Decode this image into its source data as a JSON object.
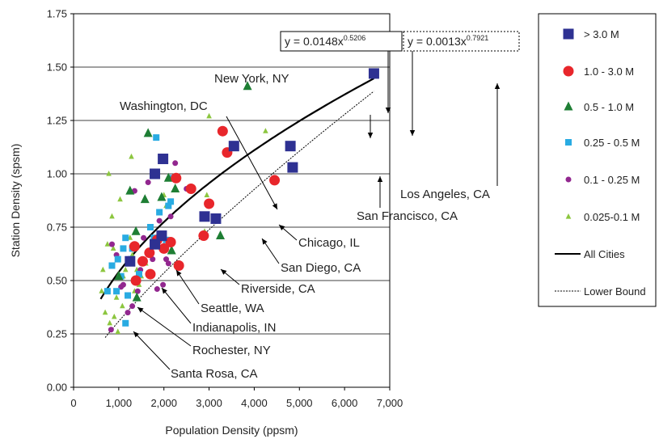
{
  "chart_data": {
    "type": "scatter",
    "title": "",
    "xlabel": "Population Density (ppsm)",
    "ylabel": "Station Density (spsm)",
    "xlim": [
      0,
      7000
    ],
    "ylim": [
      0,
      1.75
    ],
    "x_ticks": [
      0,
      1000,
      2000,
      3000,
      4000,
      5000,
      6000,
      7000
    ],
    "x_tick_labels": [
      "0",
      "1,000",
      "2,000",
      "3,000",
      "4,000",
      "5,000",
      "6,000",
      "7,000"
    ],
    "y_ticks": [
      0,
      0.25,
      0.5,
      0.75,
      1.0,
      1.25,
      1.5,
      1.75
    ],
    "y_tick_labels": [
      "0.00",
      "0.25",
      "0.50",
      "0.75",
      "1.00",
      "1.25",
      "1.50",
      "1.75"
    ],
    "grid": "horizontal",
    "legend_position": "right",
    "series": [
      {
        "name": "> 3.0 M",
        "marker": "square",
        "color": "#2e3192",
        "points": [
          [
            1250,
            0.59
          ],
          [
            1800,
            0.67
          ],
          [
            1800,
            1.0
          ],
          [
            1950,
            0.71
          ],
          [
            1980,
            1.07
          ],
          [
            2900,
            0.8
          ],
          [
            3150,
            0.79
          ],
          [
            3550,
            1.13
          ],
          [
            4800,
            1.13
          ],
          [
            4850,
            1.03
          ],
          [
            6650,
            1.47
          ]
        ]
      },
      {
        "name": "1.0 - 3.0 M",
        "marker": "circle",
        "color": "#e8262b",
        "points": [
          [
            1350,
            0.66
          ],
          [
            1380,
            0.5
          ],
          [
            1530,
            0.59
          ],
          [
            1680,
            0.63
          ],
          [
            1700,
            0.53
          ],
          [
            1850,
            0.69
          ],
          [
            2000,
            0.65
          ],
          [
            2150,
            0.68
          ],
          [
            2270,
            0.98
          ],
          [
            2330,
            0.57
          ],
          [
            2600,
            0.93
          ],
          [
            2880,
            0.71
          ],
          [
            3000,
            0.86
          ],
          [
            3300,
            1.2
          ],
          [
            3400,
            1.1
          ],
          [
            4450,
            0.97
          ]
        ]
      },
      {
        "name": "0.5 - 1.0 M",
        "marker": "triangle",
        "color": "#1e7e34",
        "points": [
          [
            1000,
            0.52
          ],
          [
            1250,
            0.92
          ],
          [
            1380,
            0.73
          ],
          [
            1400,
            0.42
          ],
          [
            1580,
            0.88
          ],
          [
            1650,
            1.19
          ],
          [
            1950,
            0.89
          ],
          [
            2100,
            0.98
          ],
          [
            2170,
            0.64
          ],
          [
            2250,
            0.93
          ],
          [
            3250,
            0.71
          ],
          [
            3850,
            1.41
          ]
        ]
      },
      {
        "name": "0.25 - 0.5 M",
        "marker": "square-small",
        "color": "#29abe2",
        "points": [
          [
            750,
            0.45
          ],
          [
            850,
            0.57
          ],
          [
            950,
            0.45
          ],
          [
            980,
            0.6
          ],
          [
            1050,
            0.52
          ],
          [
            1100,
            0.65
          ],
          [
            1150,
            0.7
          ],
          [
            1200,
            0.43
          ],
          [
            1280,
            0.6
          ],
          [
            1300,
            0.65
          ],
          [
            1450,
            0.53
          ],
          [
            1700,
            0.75
          ],
          [
            1780,
            0.7
          ],
          [
            1900,
            0.82
          ],
          [
            2000,
            0.65
          ],
          [
            2050,
            0.69
          ],
          [
            2100,
            0.85
          ],
          [
            2150,
            0.87
          ],
          [
            2200,
            0.98
          ],
          [
            1830,
            1.17
          ],
          [
            1150,
            0.3
          ]
        ]
      },
      {
        "name": "0.1 - 0.25 M",
        "marker": "circle-small",
        "color": "#92278f",
        "points": [
          [
            830,
            0.27
          ],
          [
            850,
            0.67
          ],
          [
            950,
            0.62
          ],
          [
            1050,
            0.47
          ],
          [
            1100,
            0.48
          ],
          [
            1200,
            0.35
          ],
          [
            1300,
            0.38
          ],
          [
            1350,
            0.92
          ],
          [
            1420,
            0.45
          ],
          [
            1480,
            0.55
          ],
          [
            1550,
            0.7
          ],
          [
            1650,
            0.96
          ],
          [
            1850,
            0.46
          ],
          [
            1900,
            0.78
          ],
          [
            1980,
            0.48
          ],
          [
            2100,
            0.58
          ],
          [
            2150,
            0.8
          ],
          [
            2250,
            1.05
          ],
          [
            2500,
            0.93
          ],
          [
            2650,
            0.93
          ],
          [
            1750,
            0.6
          ],
          [
            2050,
            0.6
          ]
        ]
      },
      {
        "name": "0.025-0.1 M",
        "marker": "triangle-small",
        "color": "#8cc63f",
        "points": [
          [
            620,
            0.45
          ],
          [
            650,
            0.55
          ],
          [
            700,
            0.35
          ],
          [
            750,
            0.67
          ],
          [
            780,
            1.0
          ],
          [
            800,
            0.3
          ],
          [
            850,
            0.8
          ],
          [
            880,
            0.65
          ],
          [
            900,
            0.33
          ],
          [
            950,
            0.42
          ],
          [
            980,
            0.26
          ],
          [
            1000,
            0.53
          ],
          [
            1030,
            0.88
          ],
          [
            1080,
            0.38
          ],
          [
            1100,
            0.52
          ],
          [
            1150,
            0.55
          ],
          [
            1200,
            0.6
          ],
          [
            1250,
            0.7
          ],
          [
            1280,
            1.08
          ],
          [
            1300,
            0.62
          ],
          [
            1350,
            0.45
          ],
          [
            1400,
            0.55
          ],
          [
            1450,
            0.48
          ],
          [
            1500,
            0.52
          ],
          [
            1600,
            0.58
          ],
          [
            2000,
            0.9
          ],
          [
            2050,
            0.85
          ],
          [
            2950,
            0.9
          ],
          [
            3000,
            1.27
          ],
          [
            4250,
            1.2
          ],
          [
            2900,
            0.73
          ]
        ]
      }
    ],
    "lines": [
      {
        "name": "All Cities",
        "style": "solid",
        "color": "#000000",
        "equation": "y = 0.0148x",
        "exponent": "0.5206",
        "coef": 0.0148,
        "power": 0.5206,
        "x_range": [
          600,
          6650
        ]
      },
      {
        "name": "Lower Bound",
        "style": "dotted",
        "color": "#000000",
        "equation": "y = 0.0013x",
        "exponent": "0.7921",
        "coef": 0.0013,
        "power": 0.7921,
        "x_range": [
          700,
          6650
        ]
      }
    ],
    "annotations": [
      {
        "text": "New York, NY",
        "target": [
          4800,
          1.13
        ]
      },
      {
        "text": "Washington, DC",
        "target": [
          2900,
          0.8
        ]
      },
      {
        "text": "Los Angeles, CA",
        "target": [
          6650,
          1.47
        ]
      },
      {
        "text": "San Francisco, CA",
        "target": [
          4850,
          1.03
        ]
      },
      {
        "text": "Chicago, IL",
        "target": [
          3150,
          0.79
        ]
      },
      {
        "text": "San Diego, CA",
        "target": [
          2880,
          0.71
        ]
      },
      {
        "text": "Riverside, CA",
        "target": [
          2330,
          0.57
        ]
      },
      {
        "text": "Seattle, WA",
        "target": [
          1680,
          0.63
        ]
      },
      {
        "text": "Indianapolis, IN",
        "target": [
          1380,
          0.5
        ]
      },
      {
        "text": "Rochester, NY",
        "target": [
          1200,
          0.43
        ]
      },
      {
        "text": "Santa Rosa, CA",
        "target": [
          1150,
          0.3
        ]
      }
    ]
  }
}
